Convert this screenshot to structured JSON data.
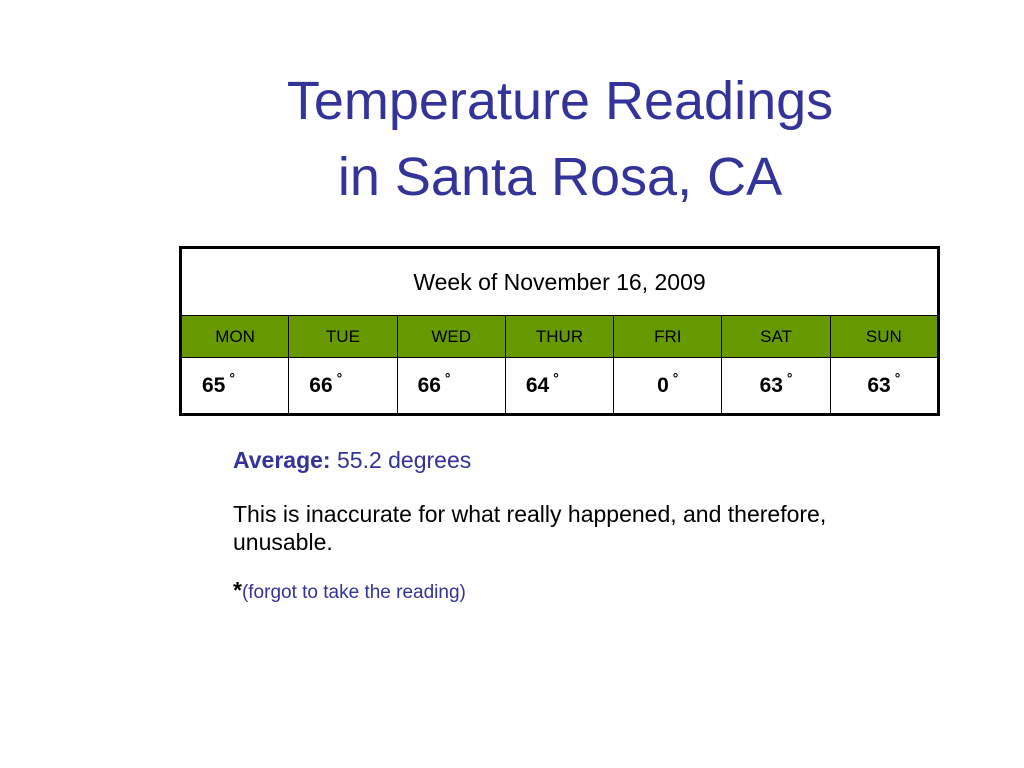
{
  "title": {
    "line1": "Temperature Readings",
    "line2": "in Santa Rosa, CA"
  },
  "table": {
    "header": "Week of November 16, 2009",
    "days": [
      "MON",
      "TUE",
      "WED",
      "THUR",
      "FRI",
      "SAT",
      "SUN"
    ],
    "values": [
      "65",
      "66",
      "66",
      "64",
      "0",
      "63",
      "63"
    ],
    "degree_symbol": "°"
  },
  "notes": {
    "average_label": "Average:",
    "average_value": " 55.2 degrees",
    "comment": "This is inaccurate for what really happened, and therefore, unusable.",
    "footnote_star": "*",
    "footnote_text": "(forgot to take the reading)"
  },
  "colors": {
    "title": "#333399",
    "day_row_bg": "#669900",
    "text": "#000000"
  }
}
